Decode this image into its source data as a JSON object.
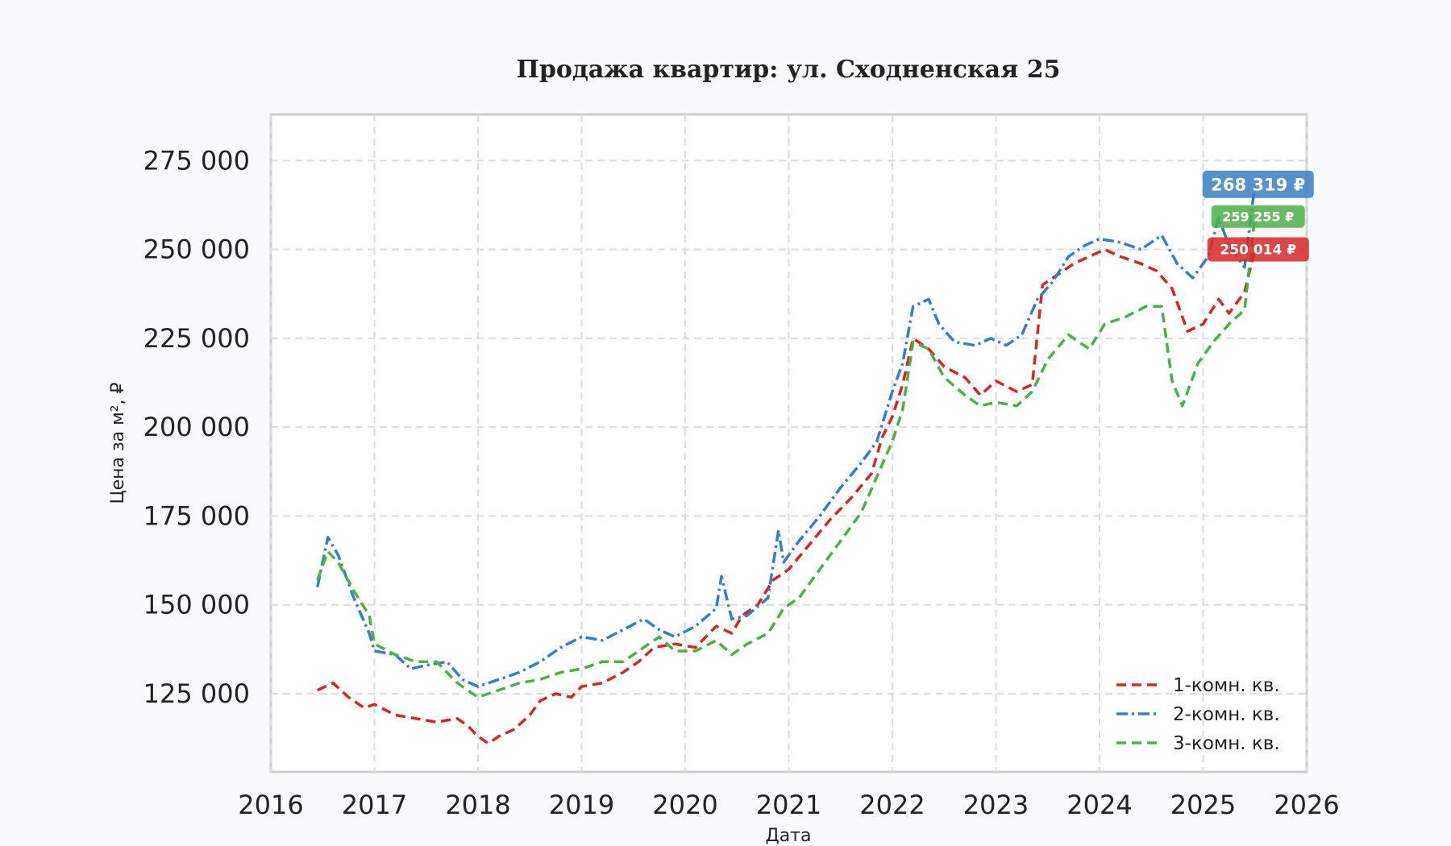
{
  "chart_data": {
    "type": "line",
    "title": "Продажа квартир: ул. Сходненская 25",
    "xlabel": "Дата",
    "ylabel": "Цена за м², ₽",
    "xlim": [
      2016,
      2026
    ],
    "ylim": [
      103000,
      288000
    ],
    "x_ticks": [
      "2016",
      "2017",
      "2018",
      "2019",
      "2020",
      "2021",
      "2022",
      "2023",
      "2024",
      "2025",
      "2026"
    ],
    "y_ticks": [
      {
        "value": 125000,
        "label": "125 000"
      },
      {
        "value": 150000,
        "label": "150 000"
      },
      {
        "value": 175000,
        "label": "175 000"
      },
      {
        "value": 200000,
        "label": "200 000"
      },
      {
        "value": 225000,
        "label": "225 000"
      },
      {
        "value": 250000,
        "label": "250 000"
      },
      {
        "value": 275000,
        "label": "275 000"
      }
    ],
    "grid": true,
    "legend_position": "bottom-right",
    "series": [
      {
        "name": "1-комн. кв.",
        "color": "#d62728",
        "dash": "dashed",
        "last_label": "250 014 ₽",
        "points": [
          [
            2016.45,
            126000
          ],
          [
            2016.6,
            128000
          ],
          [
            2016.75,
            124000
          ],
          [
            2016.9,
            121000
          ],
          [
            2017.0,
            122000
          ],
          [
            2017.2,
            119000
          ],
          [
            2017.4,
            118000
          ],
          [
            2017.6,
            117000
          ],
          [
            2017.8,
            118000
          ],
          [
            2017.9,
            116000
          ],
          [
            2018.0,
            113000
          ],
          [
            2018.1,
            111000
          ],
          [
            2018.2,
            113000
          ],
          [
            2018.35,
            115000
          ],
          [
            2018.5,
            119000
          ],
          [
            2018.6,
            123000
          ],
          [
            2018.75,
            125000
          ],
          [
            2018.9,
            124000
          ],
          [
            2019.0,
            127000
          ],
          [
            2019.2,
            128000
          ],
          [
            2019.4,
            131000
          ],
          [
            2019.55,
            134000
          ],
          [
            2019.7,
            138000
          ],
          [
            2019.9,
            139000
          ],
          [
            2020.1,
            138000
          ],
          [
            2020.3,
            144000
          ],
          [
            2020.45,
            142000
          ],
          [
            2020.55,
            147000
          ],
          [
            2020.7,
            150000
          ],
          [
            2020.85,
            157000
          ],
          [
            2021.0,
            160000
          ],
          [
            2021.2,
            167000
          ],
          [
            2021.4,
            174000
          ],
          [
            2021.6,
            180000
          ],
          [
            2021.8,
            187000
          ],
          [
            2021.9,
            197000
          ],
          [
            2022.0,
            203000
          ],
          [
            2022.1,
            212000
          ],
          [
            2022.2,
            225000
          ],
          [
            2022.35,
            222000
          ],
          [
            2022.5,
            217000
          ],
          [
            2022.7,
            214000
          ],
          [
            2022.85,
            209000
          ],
          [
            2023.0,
            213000
          ],
          [
            2023.2,
            210000
          ],
          [
            2023.35,
            212000
          ],
          [
            2023.45,
            240000
          ],
          [
            2023.6,
            243000
          ],
          [
            2023.75,
            246000
          ],
          [
            2023.9,
            248000
          ],
          [
            2024.05,
            250000
          ],
          [
            2024.2,
            248000
          ],
          [
            2024.4,
            246000
          ],
          [
            2024.55,
            244000
          ],
          [
            2024.7,
            239000
          ],
          [
            2024.85,
            227000
          ],
          [
            2025.0,
            229000
          ],
          [
            2025.15,
            236000
          ],
          [
            2025.25,
            232000
          ],
          [
            2025.4,
            238000
          ],
          [
            2025.5,
            250014
          ]
        ]
      },
      {
        "name": "2-комн. кв.",
        "color": "#3a7ebf",
        "dash": "dashdot",
        "last_label": "268 319 ₽",
        "points": [
          [
            2016.45,
            155000
          ],
          [
            2016.55,
            169000
          ],
          [
            2016.65,
            164000
          ],
          [
            2016.8,
            152000
          ],
          [
            2016.95,
            142000
          ],
          [
            2017.0,
            137000
          ],
          [
            2017.2,
            136000
          ],
          [
            2017.35,
            132000
          ],
          [
            2017.5,
            133000
          ],
          [
            2017.7,
            134000
          ],
          [
            2017.85,
            129000
          ],
          [
            2018.0,
            127000
          ],
          [
            2018.2,
            129000
          ],
          [
            2018.4,
            131000
          ],
          [
            2018.6,
            134000
          ],
          [
            2018.8,
            138000
          ],
          [
            2019.0,
            141000
          ],
          [
            2019.2,
            140000
          ],
          [
            2019.4,
            143000
          ],
          [
            2019.6,
            146000
          ],
          [
            2019.75,
            143000
          ],
          [
            2019.9,
            141000
          ],
          [
            2020.1,
            144000
          ],
          [
            2020.3,
            149000
          ],
          [
            2020.35,
            158000
          ],
          [
            2020.45,
            146000
          ],
          [
            2020.6,
            147000
          ],
          [
            2020.8,
            152000
          ],
          [
            2020.9,
            171000
          ],
          [
            2020.95,
            162000
          ],
          [
            2021.1,
            168000
          ],
          [
            2021.3,
            175000
          ],
          [
            2021.5,
            183000
          ],
          [
            2021.7,
            190000
          ],
          [
            2021.85,
            196000
          ],
          [
            2022.0,
            210000
          ],
          [
            2022.1,
            218000
          ],
          [
            2022.2,
            234000
          ],
          [
            2022.35,
            236000
          ],
          [
            2022.45,
            229000
          ],
          [
            2022.6,
            224000
          ],
          [
            2022.8,
            223000
          ],
          [
            2022.95,
            225000
          ],
          [
            2023.1,
            223000
          ],
          [
            2023.25,
            226000
          ],
          [
            2023.4,
            236000
          ],
          [
            2023.55,
            241000
          ],
          [
            2023.7,
            248000
          ],
          [
            2023.85,
            251000
          ],
          [
            2024.0,
            253000
          ],
          [
            2024.2,
            252000
          ],
          [
            2024.4,
            250000
          ],
          [
            2024.6,
            254000
          ],
          [
            2024.75,
            246000
          ],
          [
            2024.9,
            242000
          ],
          [
            2025.05,
            248000
          ],
          [
            2025.15,
            259000
          ],
          [
            2025.25,
            251000
          ],
          [
            2025.4,
            245000
          ],
          [
            2025.5,
            268319
          ]
        ]
      },
      {
        "name": "3-комн. кв.",
        "color": "#4daf4a",
        "dash": "dashed",
        "last_label": "259 255 ₽",
        "points": [
          [
            2016.45,
            157000
          ],
          [
            2016.55,
            165000
          ],
          [
            2016.65,
            162000
          ],
          [
            2016.8,
            154000
          ],
          [
            2016.95,
            147000
          ],
          [
            2017.0,
            139000
          ],
          [
            2017.2,
            136000
          ],
          [
            2017.4,
            134000
          ],
          [
            2017.6,
            134000
          ],
          [
            2017.8,
            128000
          ],
          [
            2018.0,
            124000
          ],
          [
            2018.2,
            126000
          ],
          [
            2018.4,
            128000
          ],
          [
            2018.6,
            129000
          ],
          [
            2018.8,
            131000
          ],
          [
            2019.0,
            132000
          ],
          [
            2019.2,
            134000
          ],
          [
            2019.4,
            134000
          ],
          [
            2019.6,
            138000
          ],
          [
            2019.75,
            141000
          ],
          [
            2019.9,
            137000
          ],
          [
            2020.1,
            137000
          ],
          [
            2020.3,
            140000
          ],
          [
            2020.45,
            136000
          ],
          [
            2020.6,
            139000
          ],
          [
            2020.8,
            142000
          ],
          [
            2020.95,
            149000
          ],
          [
            2021.1,
            152000
          ],
          [
            2021.3,
            160000
          ],
          [
            2021.5,
            168000
          ],
          [
            2021.7,
            176000
          ],
          [
            2021.85,
            186000
          ],
          [
            2022.0,
            196000
          ],
          [
            2022.1,
            205000
          ],
          [
            2022.2,
            224000
          ],
          [
            2022.35,
            222000
          ],
          [
            2022.5,
            214000
          ],
          [
            2022.7,
            209000
          ],
          [
            2022.85,
            206000
          ],
          [
            2023.0,
            207000
          ],
          [
            2023.2,
            206000
          ],
          [
            2023.35,
            210000
          ],
          [
            2023.5,
            219000
          ],
          [
            2023.7,
            226000
          ],
          [
            2023.9,
            222000
          ],
          [
            2024.05,
            229000
          ],
          [
            2024.25,
            231000
          ],
          [
            2024.45,
            234000
          ],
          [
            2024.6,
            234000
          ],
          [
            2024.7,
            213000
          ],
          [
            2024.8,
            206000
          ],
          [
            2024.95,
            218000
          ],
          [
            2025.1,
            224000
          ],
          [
            2025.25,
            229000
          ],
          [
            2025.4,
            233000
          ],
          [
            2025.5,
            259255
          ]
        ]
      }
    ]
  }
}
